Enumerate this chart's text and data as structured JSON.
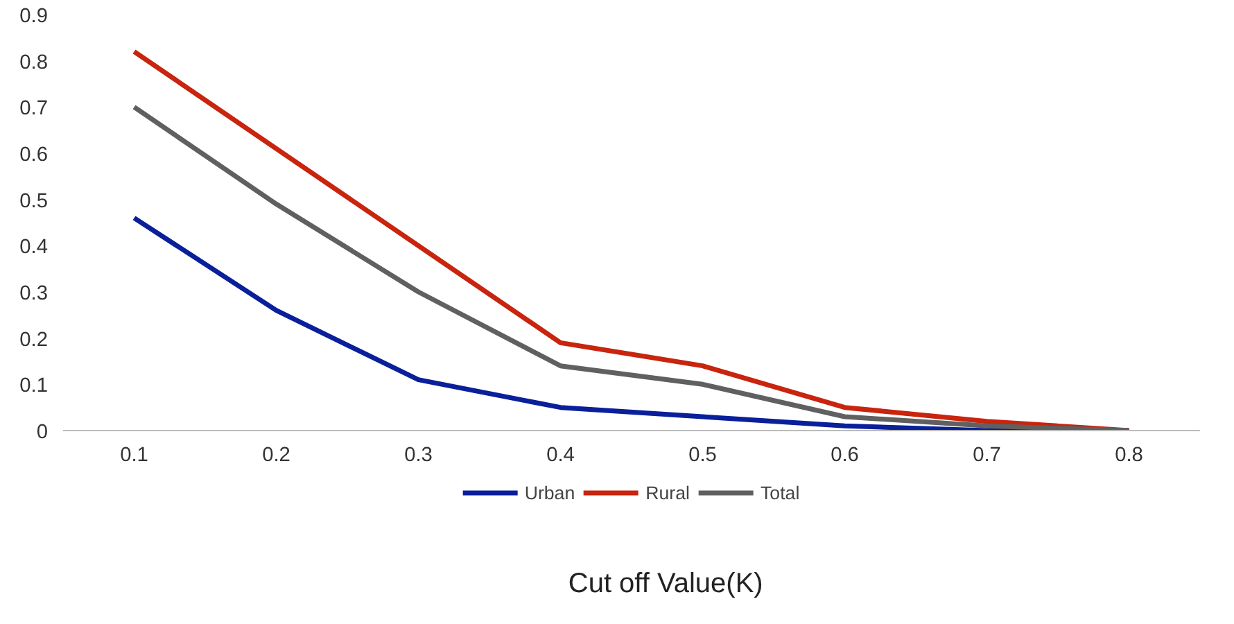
{
  "chart_data": {
    "type": "line",
    "xlabel": "Cut off Value(K)",
    "categories": [
      "0.1",
      "0.2",
      "0.3",
      "0.4",
      "0.5",
      "0.6",
      "0.7",
      "0.8"
    ],
    "ylim": [
      0,
      0.9
    ],
    "yticks": [
      0,
      0.1,
      0.2,
      0.3,
      0.4,
      0.5,
      0.6,
      0.7,
      0.8,
      0.9
    ],
    "grid": false,
    "legend": "bottom",
    "marker": "none",
    "line_style": "solid",
    "series": [
      {
        "name": "Urban",
        "color": "#0a1f9a",
        "values": [
          0.46,
          0.26,
          0.11,
          0.05,
          0.03,
          0.01,
          0,
          0
        ]
      },
      {
        "name": "Rural",
        "color": "#c8240e",
        "values": [
          0.82,
          0.61,
          0.4,
          0.19,
          0.14,
          0.05,
          0.02,
          0
        ]
      },
      {
        "name": "Total",
        "color": "#606060",
        "values": [
          0.7,
          0.49,
          0.3,
          0.14,
          0.1,
          0.03,
          0.01,
          0
        ]
      }
    ]
  }
}
